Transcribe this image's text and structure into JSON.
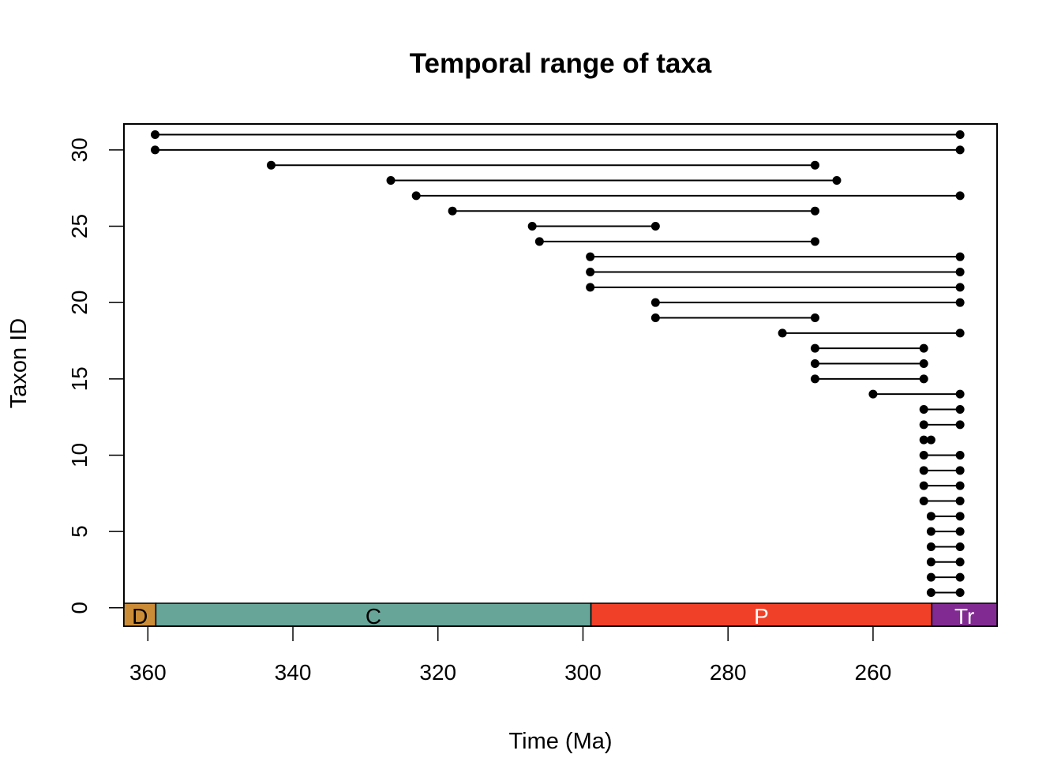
{
  "chart_data": {
    "type": "scatter",
    "title": "Temporal range of taxa",
    "xlabel": "Time (Ma)",
    "ylabel": "Taxon ID",
    "xlim": [
      363.3,
      242.9
    ],
    "ylim": [
      -1.2,
      31.7
    ],
    "x_reversed": true,
    "x_ticks": [
      360,
      340,
      320,
      300,
      280,
      260
    ],
    "y_ticks": [
      0,
      5,
      10,
      15,
      20,
      25,
      30
    ],
    "grid": false,
    "legend": "none",
    "colors": {
      "line": "#000000",
      "point": "#000000"
    },
    "ranges": [
      {
        "taxon": 1,
        "fad": 252.0,
        "lad": 248.0
      },
      {
        "taxon": 2,
        "fad": 252.0,
        "lad": 248.0
      },
      {
        "taxon": 3,
        "fad": 252.0,
        "lad": 248.0
      },
      {
        "taxon": 4,
        "fad": 252.0,
        "lad": 248.0
      },
      {
        "taxon": 5,
        "fad": 252.0,
        "lad": 248.0
      },
      {
        "taxon": 6,
        "fad": 252.0,
        "lad": 248.0
      },
      {
        "taxon": 7,
        "fad": 253.0,
        "lad": 248.0
      },
      {
        "taxon": 8,
        "fad": 253.0,
        "lad": 248.0
      },
      {
        "taxon": 9,
        "fad": 253.0,
        "lad": 248.0
      },
      {
        "taxon": 10,
        "fad": 253.0,
        "lad": 248.0
      },
      {
        "taxon": 11,
        "fad": 253.0,
        "lad": 252.0
      },
      {
        "taxon": 12,
        "fad": 253.0,
        "lad": 248.0
      },
      {
        "taxon": 13,
        "fad": 253.0,
        "lad": 248.0
      },
      {
        "taxon": 14,
        "fad": 260.0,
        "lad": 248.0
      },
      {
        "taxon": 15,
        "fad": 268.0,
        "lad": 253.0
      },
      {
        "taxon": 16,
        "fad": 268.0,
        "lad": 253.0
      },
      {
        "taxon": 17,
        "fad": 268.0,
        "lad": 253.0
      },
      {
        "taxon": 18,
        "fad": 272.5,
        "lad": 248.0
      },
      {
        "taxon": 19,
        "fad": 290.0,
        "lad": 268.0
      },
      {
        "taxon": 20,
        "fad": 290.0,
        "lad": 248.0
      },
      {
        "taxon": 21,
        "fad": 299.0,
        "lad": 248.0
      },
      {
        "taxon": 22,
        "fad": 299.0,
        "lad": 248.0
      },
      {
        "taxon": 23,
        "fad": 299.0,
        "lad": 248.0
      },
      {
        "taxon": 24,
        "fad": 306.0,
        "lad": 268.0
      },
      {
        "taxon": 25,
        "fad": 307.0,
        "lad": 290.0
      },
      {
        "taxon": 26,
        "fad": 318.0,
        "lad": 268.0
      },
      {
        "taxon": 27,
        "fad": 323.0,
        "lad": 248.0
      },
      {
        "taxon": 28,
        "fad": 326.5,
        "lad": 265.0
      },
      {
        "taxon": 29,
        "fad": 343.0,
        "lad": 268.0
      },
      {
        "taxon": 30,
        "fad": 359.0,
        "lad": 248.0
      },
      {
        "taxon": 31,
        "fad": 359.0,
        "lad": 248.0
      }
    ],
    "periods": [
      {
        "label": "D",
        "start": 363.3,
        "end": 358.9,
        "color": "#CB8C37",
        "text_color": "#000000"
      },
      {
        "label": "C",
        "start": 358.9,
        "end": 298.9,
        "color": "#67A599",
        "text_color": "#000000"
      },
      {
        "label": "P",
        "start": 298.9,
        "end": 251.9,
        "color": "#F04028",
        "text_color": "#FFFFFF"
      },
      {
        "label": "Tr",
        "start": 251.9,
        "end": 242.9,
        "color": "#812B92",
        "text_color": "#FFFFFF"
      }
    ]
  }
}
